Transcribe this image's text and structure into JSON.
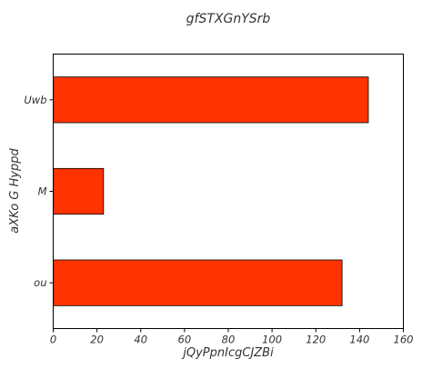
{
  "chart_data": {
    "type": "bar",
    "orientation": "horizontal",
    "title": "gfSTXGnYSrb",
    "xlabel": "jQyPpnIcgCJZBi",
    "ylabel": "aXKo  G Hyppd",
    "categories": [
      "ou",
      "M",
      "Uwb"
    ],
    "values": [
      132,
      23,
      144
    ],
    "xlim": [
      0,
      160
    ],
    "xticks": [
      0,
      20,
      40,
      60,
      80,
      100,
      120,
      140,
      160
    ],
    "bar_color": "#ff3300",
    "grid": false,
    "legend": "none"
  }
}
